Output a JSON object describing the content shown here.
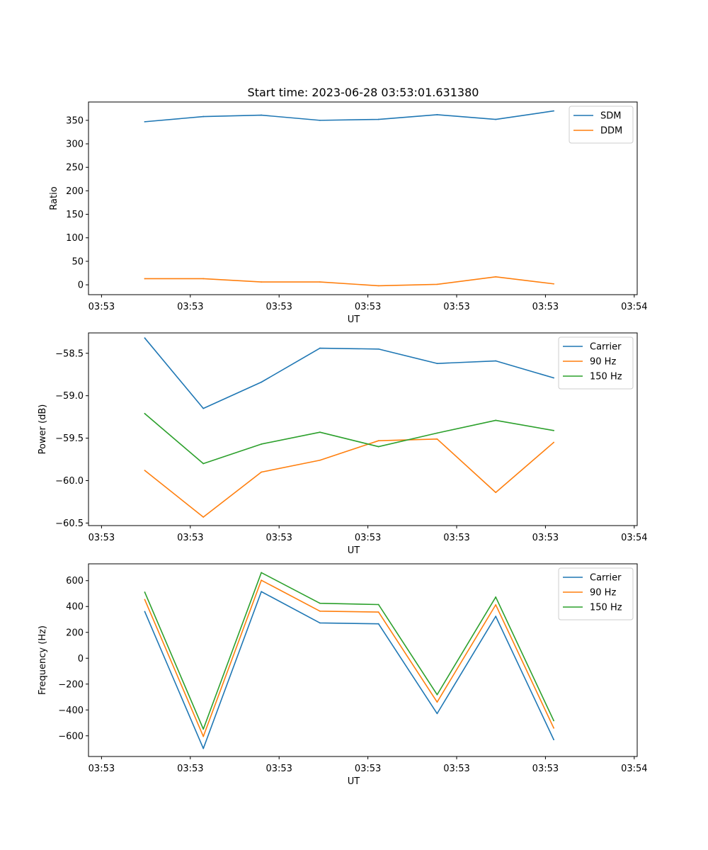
{
  "title": "Start time: 2023-06-28 03:53:01.631380",
  "chart_data": [
    {
      "type": "line",
      "ylabel": "Ratio",
      "xlabel": "UT",
      "ylim": [
        -21,
        389
      ],
      "yticks": [
        0,
        50,
        100,
        150,
        200,
        250,
        300,
        350
      ],
      "xlim": [
        -0.22,
        9.05
      ],
      "xticks": [
        0,
        1.5,
        3,
        4.5,
        6,
        7.5,
        9
      ],
      "xtick_labels": [
        "03:53",
        "03:53",
        "03:53",
        "03:53",
        "03:53",
        "03:53",
        "03:54"
      ],
      "x": [
        0.73,
        1.72,
        2.7,
        3.69,
        4.68,
        5.67,
        6.66,
        7.64
      ],
      "grid": false,
      "legend_position": "upper right",
      "series": [
        {
          "name": "SDM",
          "color": "#1f77b4",
          "values": [
            347,
            358,
            361,
            350,
            352,
            362,
            352,
            370
          ]
        },
        {
          "name": "DDM",
          "color": "#ff7f0e",
          "values": [
            13,
            13,
            6,
            6,
            -2,
            1,
            17,
            2
          ]
        }
      ]
    },
    {
      "type": "line",
      "ylabel": "Power (dB)",
      "xlabel": "UT",
      "ylim": [
        -60.53,
        -58.26
      ],
      "yticks": [
        -60.5,
        -60.0,
        -59.5,
        -59.0,
        -58.5
      ],
      "ytick_labels": [
        "−60.5",
        "−60.0",
        "−59.5",
        "−59.0",
        "−58.5"
      ],
      "xlim": [
        -0.22,
        9.05
      ],
      "xticks": [
        0,
        1.5,
        3,
        4.5,
        6,
        7.5,
        9
      ],
      "xtick_labels": [
        "03:53",
        "03:53",
        "03:53",
        "03:53",
        "03:53",
        "03:53",
        "03:54"
      ],
      "x": [
        0.73,
        1.72,
        2.7,
        3.69,
        4.68,
        5.67,
        6.66,
        7.64
      ],
      "grid": false,
      "legend_position": "upper right",
      "series": [
        {
          "name": "Carrier",
          "color": "#1f77b4",
          "values": [
            -58.32,
            -59.15,
            -58.84,
            -58.44,
            -58.45,
            -58.62,
            -58.59,
            -58.79
          ]
        },
        {
          "name": "90 Hz",
          "color": "#ff7f0e",
          "values": [
            -59.88,
            -60.43,
            -59.9,
            -59.76,
            -59.53,
            -59.51,
            -60.14,
            -59.55
          ]
        },
        {
          "name": "150 Hz",
          "color": "#2ca02c",
          "values": [
            -59.21,
            -59.8,
            -59.57,
            -59.43,
            -59.6,
            -59.44,
            -59.29,
            -59.41
          ]
        }
      ]
    },
    {
      "type": "line",
      "ylabel": "Frequency (Hz)",
      "xlabel": "UT",
      "ylim": [
        -760,
        730
      ],
      "yticks": [
        -600,
        -400,
        -200,
        0,
        200,
        400,
        600
      ],
      "ytick_labels": [
        "−600",
        "−400",
        "−200",
        "0",
        "200",
        "400",
        "600"
      ],
      "xlim": [
        -0.22,
        9.05
      ],
      "xticks": [
        0,
        1.5,
        3,
        4.5,
        6,
        7.5,
        9
      ],
      "xtick_labels": [
        "03:53",
        "03:53",
        "03:53",
        "03:53",
        "03:53",
        "03:53",
        "03:54"
      ],
      "x": [
        0.73,
        1.72,
        2.7,
        3.69,
        4.68,
        5.67,
        6.66,
        7.64
      ],
      "grid": false,
      "legend_position": "upper right",
      "series": [
        {
          "name": "Carrier",
          "color": "#1f77b4",
          "values": [
            361,
            -698,
            515,
            273,
            266,
            -428,
            324,
            -630
          ]
        },
        {
          "name": "90 Hz",
          "color": "#ff7f0e",
          "values": [
            454,
            -605,
            603,
            364,
            357,
            -339,
            413,
            -540
          ]
        },
        {
          "name": "150 Hz",
          "color": "#2ca02c",
          "values": [
            511,
            -548,
            662,
            425,
            415,
            -282,
            473,
            -483
          ]
        }
      ]
    }
  ]
}
